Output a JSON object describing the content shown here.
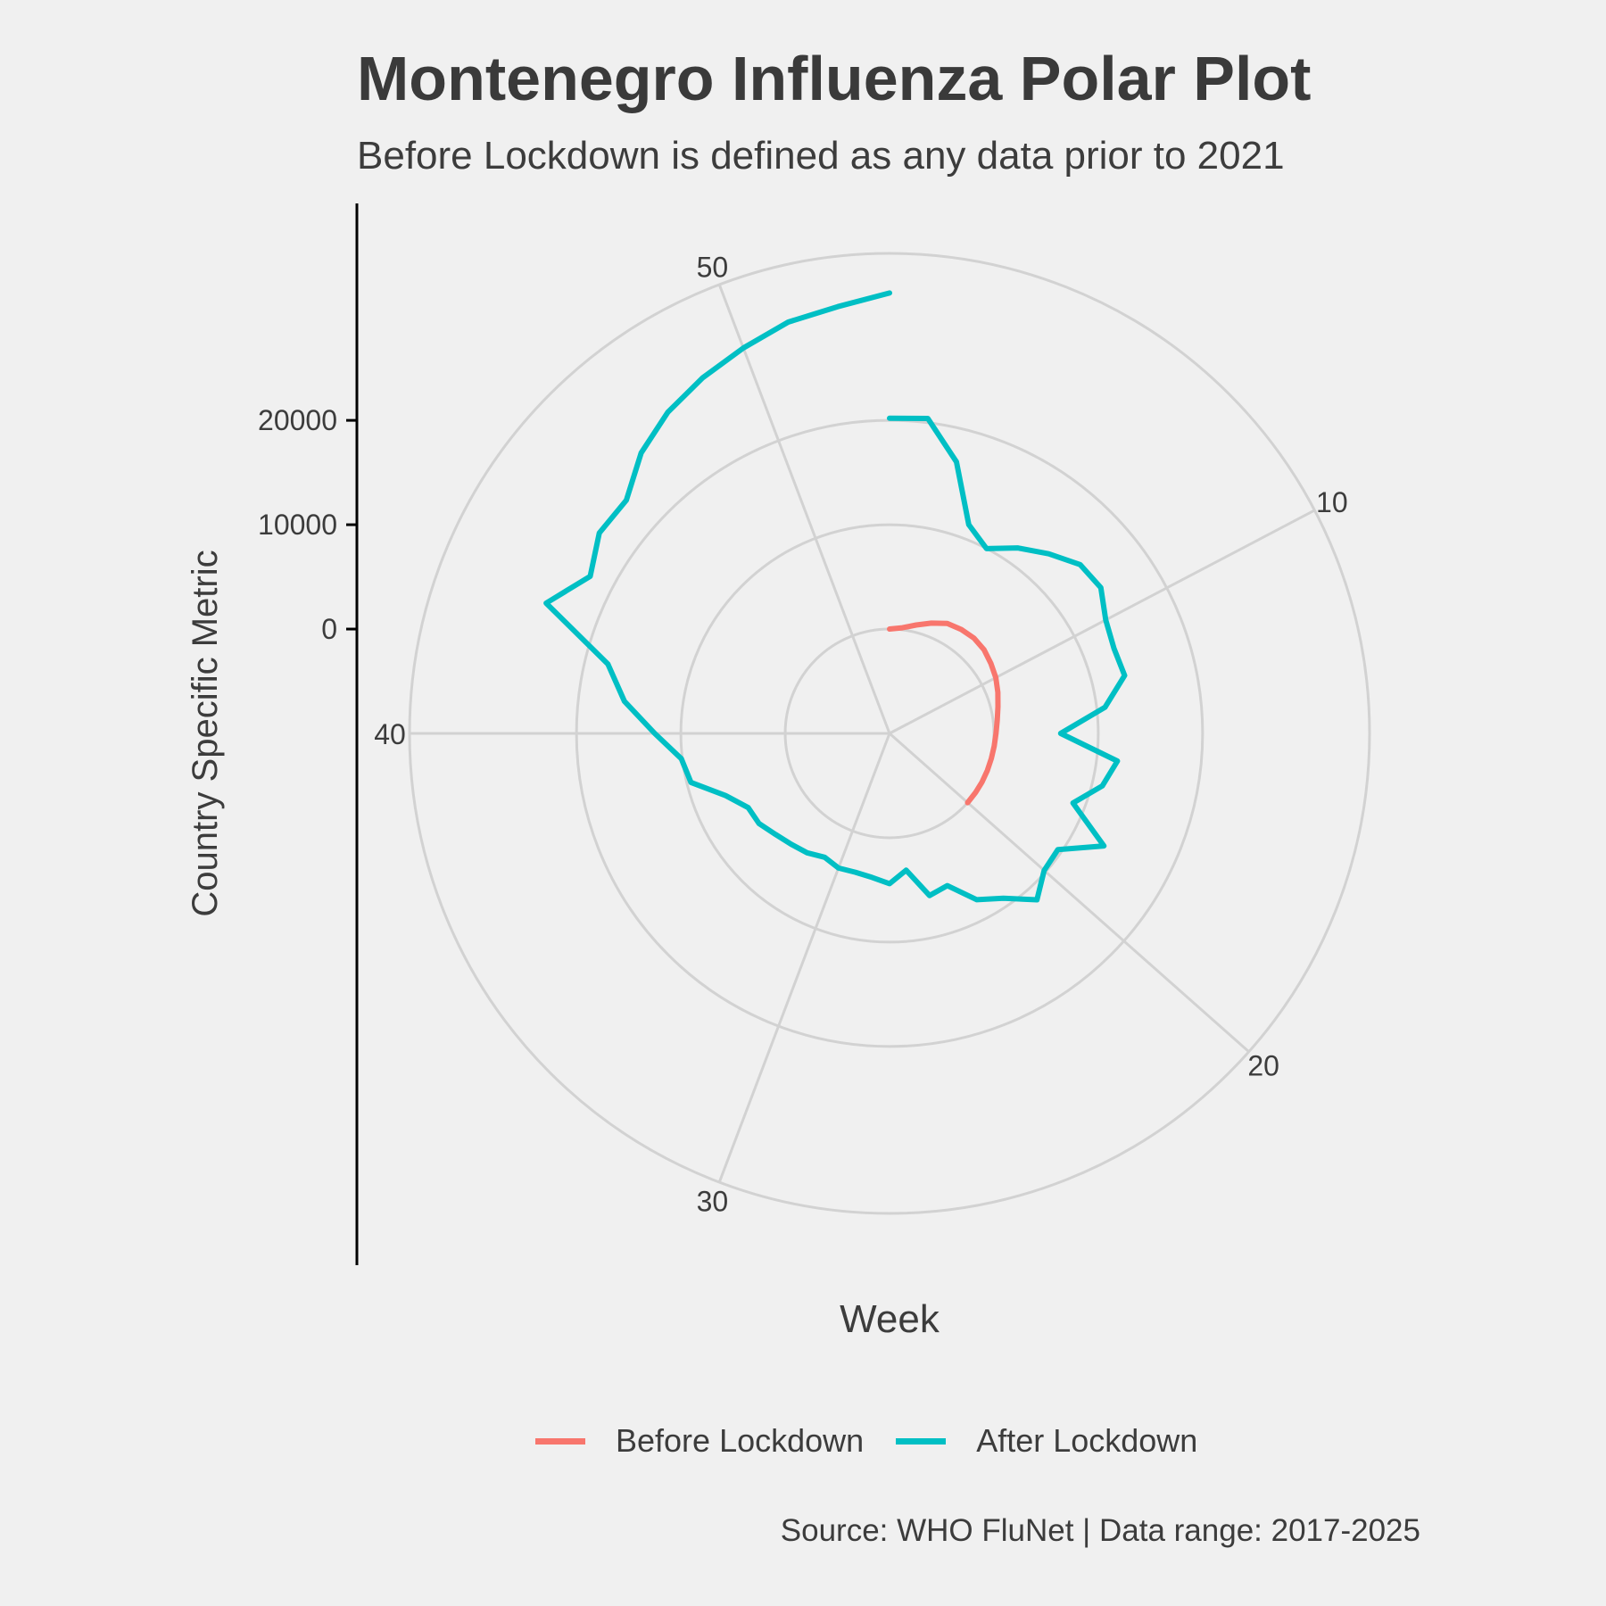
{
  "title": "Montenegro Influenza Polar Plot",
  "subtitle": "Before Lockdown is defined as any data prior to 2021",
  "caption": "Source: WHO FluNet | Data range: 2017-2025",
  "chart_data": {
    "type": "line",
    "coordinate_system": "polar",
    "xlabel": "Week",
    "ylabel": "Country Specific Metric",
    "theta_ticks": [
      "10",
      "20",
      "30",
      "40",
      "50"
    ],
    "theta_range": [
      1,
      53
    ],
    "r_ticks": [
      "0",
      "10000",
      "20000"
    ],
    "r_range": [
      -10000,
      36000
    ],
    "grid": true,
    "legend_position": "bottom",
    "series": [
      {
        "name": "Before Lockdown",
        "color": "#F8766D",
        "x": [
          1,
          2,
          3,
          4,
          5,
          6,
          7,
          8,
          9,
          10,
          11,
          12,
          13,
          14,
          15,
          16,
          17,
          18,
          19,
          20
        ],
        "values": [
          0,
          200,
          700,
          1300,
          1900,
          2100,
          2200,
          2100,
          1800,
          1500,
          1100,
          700,
          400,
          200,
          100,
          50,
          20,
          10,
          0,
          0
        ]
      },
      {
        "name": "After Lockdown",
        "color": "#00BFC4",
        "x": [
          1,
          2,
          3,
          4,
          5,
          6,
          7,
          8,
          9,
          10,
          11,
          12,
          13,
          14,
          15,
          16,
          17,
          18,
          19,
          20,
          21,
          22,
          23,
          24,
          25,
          26,
          27,
          28,
          29,
          30,
          31,
          32,
          33,
          34,
          35,
          36,
          37,
          38,
          39,
          40,
          41,
          42,
          43,
          44,
          45,
          46,
          47,
          48,
          49,
          50,
          51,
          52,
          53
        ],
        "values": [
          20200,
          20400,
          16800,
          11400,
          10000,
          11600,
          13000,
          14400,
          14600,
          13400,
          13000,
          13200,
          10800,
          6400,
          12000,
          11000,
          8800,
          13200,
          9600,
          9800,
          11300,
          9200,
          8000,
          5600,
          6000,
          3200,
          4400,
          3900,
          3700,
          3800,
          3400,
          3900,
          4200,
          4600,
          5200,
          5300,
          6800,
          9600,
          10100,
          12500,
          15600,
          17800,
          25200,
          22400,
          23800,
          23700,
          25900,
          27400,
          28500,
          29500,
          30600,
          31200,
          32200
        ]
      }
    ]
  }
}
